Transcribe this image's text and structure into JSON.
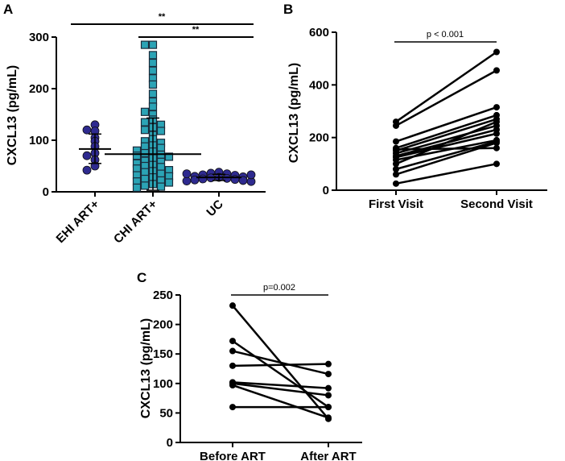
{
  "panels": {
    "A": {
      "label": "A",
      "chart_data": {
        "type": "scatter",
        "title": "",
        "ylabel": "CXCL13 (pg/mL)",
        "xlabel": "",
        "ylim": [
          0,
          300
        ],
        "yticks": [
          0,
          100,
          200,
          300
        ],
        "categories": [
          "EHI ART+",
          "CHI ART+",
          "UC"
        ],
        "series": [
          {
            "name": "EHI ART+",
            "marker": "circle",
            "color": "#2E2A8F",
            "mean": 83,
            "sd_low": 55,
            "sd_high": 112,
            "values": [
              130,
              118,
              120,
              105,
              98,
              88,
              75,
              70,
              62,
              50,
              42
            ]
          },
          {
            "name": "CHI ART+",
            "marker": "square",
            "color": "#2BA3B5",
            "mean": 73,
            "sd_low": 3,
            "sd_high": 143,
            "values": [
              285,
              285,
              265,
              250,
              235,
              220,
              208,
              190,
              175,
              165,
              155,
              150,
              140,
              135,
              130,
              125,
              120,
              118,
              110,
              102,
              98,
              95,
              90,
              88,
              85,
              80,
              78,
              75,
              72,
              70,
              68,
              65,
              60,
              58,
              55,
              52,
              50,
              48,
              45,
              42,
              40,
              38,
              35,
              32,
              30,
              28,
              25,
              22,
              20,
              18,
              15,
              12,
              10,
              8
            ]
          },
          {
            "name": "UC",
            "marker": "circle",
            "color": "#2E2A8F",
            "mean": 28,
            "sd_low": 22,
            "sd_high": 34,
            "values": [
              38,
              36,
              35,
              33,
              32,
              30,
              29,
              28,
              27,
              26,
              25,
              24,
              23,
              22,
              21,
              20,
              35,
              33
            ]
          }
        ],
        "significance": [
          {
            "from": "EHI ART+",
            "to": "UC",
            "label": "**"
          },
          {
            "from": "CHI ART+",
            "to": "UC",
            "label": "**"
          }
        ]
      }
    },
    "B": {
      "label": "B",
      "chart_data": {
        "type": "line",
        "title": "",
        "ylabel": "CXCL13 (pg/mL)",
        "xlabel": "",
        "ylim": [
          0,
          600
        ],
        "yticks": [
          0,
          200,
          400,
          600
        ],
        "categories": [
          "First Visit",
          "Second Visit"
        ],
        "pairs": [
          [
            260,
            525
          ],
          [
            245,
            455
          ],
          [
            185,
            315
          ],
          [
            160,
            285
          ],
          [
            150,
            270
          ],
          [
            140,
            245
          ],
          [
            130,
            230
          ],
          [
            125,
            215
          ],
          [
            115,
            190
          ],
          [
            100,
            260
          ],
          [
            80,
            185
          ],
          [
            60,
            180
          ],
          [
            25,
            100
          ],
          [
            155,
            160
          ]
        ],
        "significance": {
          "label": "p < 0.001"
        }
      }
    },
    "C": {
      "label": "C",
      "chart_data": {
        "type": "line",
        "title": "",
        "ylabel": "CXCL13 (pg/mL)",
        "xlabel": "",
        "ylim": [
          0,
          250
        ],
        "yticks": [
          0,
          50,
          100,
          150,
          200,
          250
        ],
        "categories": [
          "Before ART",
          "After ART"
        ],
        "pairs": [
          [
            232,
            40
          ],
          [
            172,
            60
          ],
          [
            155,
            116
          ],
          [
            130,
            133
          ],
          [
            102,
            92
          ],
          [
            100,
            80
          ],
          [
            97,
            42
          ],
          [
            60,
            60
          ]
        ],
        "significance": {
          "label": "p=0.002"
        }
      }
    }
  }
}
